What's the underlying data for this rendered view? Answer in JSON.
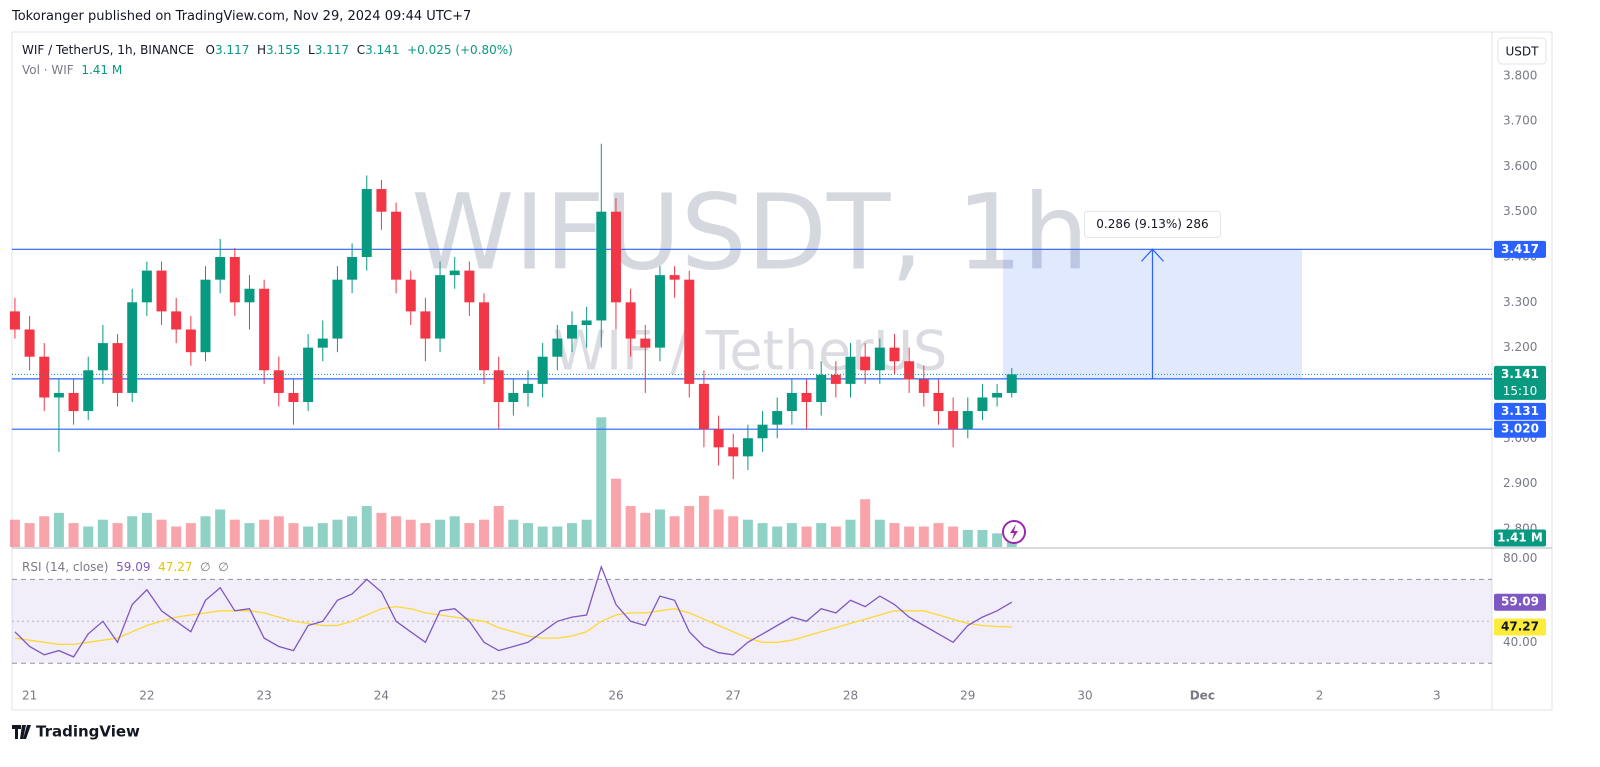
{
  "header": {
    "text": "Tokoranger published on TradingView.com, Nov 29, 2024 09:44 UTC+7"
  },
  "legend": {
    "symbol": "WIF / TetherUS, 1h, BINANCE",
    "o_label": "O",
    "open": 3.117,
    "h_label": "H",
    "high": 3.155,
    "l_label": "L",
    "low": 3.117,
    "c_label": "C",
    "close": 3.141,
    "change": "+0.025 (+0.80%)",
    "volume_label": "Vol · WIF",
    "volume_value": "1.41 M"
  },
  "watermark": {
    "symbol": "WIFUSDT, 1h",
    "name": "WIF / TetherUS"
  },
  "currency": "USDT",
  "footer": {
    "logo": "TradingView"
  },
  "chart_data": {
    "type": "candlestick",
    "x": [
      20.875,
      21,
      21.125,
      21.25,
      21.375,
      21.5,
      21.625,
      21.75,
      21.875,
      22,
      22.125,
      22.25,
      22.375,
      22.5,
      22.625,
      22.75,
      22.875,
      23,
      23.125,
      23.25,
      23.375,
      23.5,
      23.625,
      23.75,
      23.875,
      24,
      24.125,
      24.25,
      24.375,
      24.5,
      24.625,
      24.75,
      24.875,
      25,
      25.125,
      25.25,
      25.375,
      25.5,
      25.625,
      25.75,
      25.875,
      26,
      26.125,
      26.25,
      26.375,
      26.5,
      26.625,
      26.75,
      26.875,
      27,
      27.125,
      27.25,
      27.375,
      27.5,
      27.625,
      27.75,
      27.875,
      28,
      28.125,
      28.25,
      28.375,
      28.5,
      28.625,
      28.75,
      28.875,
      29,
      29.125,
      29.25,
      29.375
    ],
    "open": [
      3.28,
      3.24,
      3.18,
      3.09,
      3.1,
      3.06,
      3.15,
      3.21,
      3.1,
      3.3,
      3.37,
      3.28,
      3.24,
      3.19,
      3.35,
      3.4,
      3.3,
      3.33,
      3.15,
      3.1,
      3.08,
      3.2,
      3.22,
      3.35,
      3.4,
      3.55,
      3.5,
      3.35,
      3.28,
      3.22,
      3.36,
      3.37,
      3.3,
      3.15,
      3.08,
      3.1,
      3.12,
      3.18,
      3.22,
      3.25,
      3.26,
      3.5,
      3.3,
      3.22,
      3.2,
      3.36,
      3.35,
      3.12,
      3.02,
      2.98,
      2.96,
      3.0,
      3.03,
      3.06,
      3.1,
      3.08,
      3.14,
      3.12,
      3.18,
      3.15,
      3.2,
      3.17,
      3.13,
      3.1,
      3.06,
      3.02,
      3.06,
      3.09,
      3.1
    ],
    "high": [
      3.31,
      3.27,
      3.21,
      3.13,
      3.13,
      3.18,
      3.25,
      3.23,
      3.33,
      3.39,
      3.39,
      3.31,
      3.27,
      3.38,
      3.44,
      3.42,
      3.36,
      3.35,
      3.18,
      3.13,
      3.23,
      3.26,
      3.38,
      3.43,
      3.58,
      3.57,
      3.52,
      3.37,
      3.31,
      3.39,
      3.4,
      3.39,
      3.32,
      3.18,
      3.13,
      3.15,
      3.21,
      3.25,
      3.28,
      3.29,
      3.65,
      3.53,
      3.33,
      3.25,
      3.38,
      3.38,
      3.37,
      3.15,
      3.05,
      3.01,
      3.03,
      3.06,
      3.09,
      3.13,
      3.13,
      3.17,
      3.17,
      3.21,
      3.21,
      3.22,
      3.23,
      3.2,
      3.16,
      3.13,
      3.09,
      3.09,
      3.12,
      3.12,
      3.155
    ],
    "low": [
      3.22,
      3.15,
      3.06,
      2.97,
      3.03,
      3.04,
      3.12,
      3.07,
      3.08,
      3.27,
      3.25,
      3.21,
      3.16,
      3.17,
      3.32,
      3.27,
      3.24,
      3.12,
      3.07,
      3.03,
      3.06,
      3.17,
      3.19,
      3.32,
      3.37,
      3.46,
      3.32,
      3.25,
      3.17,
      3.19,
      3.33,
      3.27,
      3.12,
      3.02,
      3.05,
      3.07,
      3.09,
      3.15,
      3.19,
      3.2,
      3.2,
      3.24,
      3.18,
      3.1,
      3.17,
      3.31,
      3.09,
      2.98,
      2.94,
      2.91,
      2.93,
      2.97,
      3.0,
      3.03,
      3.02,
      3.05,
      3.09,
      3.09,
      3.12,
      3.12,
      3.14,
      3.1,
      3.07,
      3.03,
      2.98,
      3.0,
      3.04,
      3.07,
      3.09
    ],
    "close": [
      3.24,
      3.18,
      3.09,
      3.1,
      3.06,
      3.15,
      3.21,
      3.1,
      3.3,
      3.37,
      3.28,
      3.24,
      3.19,
      3.35,
      3.4,
      3.3,
      3.33,
      3.15,
      3.1,
      3.08,
      3.2,
      3.22,
      3.35,
      3.4,
      3.55,
      3.5,
      3.35,
      3.28,
      3.22,
      3.36,
      3.37,
      3.3,
      3.15,
      3.08,
      3.1,
      3.12,
      3.18,
      3.22,
      3.25,
      3.26,
      3.5,
      3.3,
      3.22,
      3.2,
      3.36,
      3.35,
      3.12,
      3.02,
      2.98,
      2.96,
      3.0,
      3.03,
      3.06,
      3.1,
      3.08,
      3.14,
      3.12,
      3.18,
      3.15,
      3.2,
      3.17,
      3.13,
      3.1,
      3.06,
      3.02,
      3.06,
      3.09,
      3.1,
      3.141
    ],
    "volume": [
      8,
      7,
      9,
      10,
      7,
      6,
      8,
      7,
      9,
      10,
      8,
      6,
      7,
      9,
      11,
      8,
      7,
      8,
      9,
      7,
      6,
      7,
      8,
      9,
      12,
      10,
      9,
      8,
      7,
      8,
      9,
      7,
      8,
      12,
      8,
      7,
      6,
      6,
      7,
      8,
      38,
      20,
      12,
      10,
      11,
      9,
      12,
      15,
      11,
      9,
      8,
      7,
      6,
      7,
      6,
      7,
      6,
      8,
      14,
      8,
      7,
      6,
      6,
      7,
      6,
      5,
      5,
      4,
      1.41
    ],
    "volume_lim": [
      0,
      150
    ],
    "volume_badge": {
      "value": 1.41,
      "label": "1.41 M"
    },
    "up_color": "#089981",
    "down_color": "#f23645",
    "xlim": [
      20.85,
      33.47
    ],
    "xticks": [
      21,
      22,
      23,
      24,
      25,
      26,
      27,
      28,
      29,
      30,
      {
        "value": 31,
        "label": "Dec"
      },
      {
        "value": 32,
        "label": "2"
      },
      {
        "value": 33,
        "label": "3"
      }
    ],
    "ylim": [
      2.76,
      3.89
    ],
    "yticks": [
      {
        "value": 2.8,
        "label": "2.800"
      },
      {
        "value": 2.9,
        "label": "2.900"
      },
      {
        "value": 3.0,
        "label": "3.000"
      },
      {
        "value": 3.1,
        "label": "3.100"
      },
      {
        "value": 3.2,
        "label": "3.200"
      },
      {
        "value": 3.3,
        "label": "3.300"
      },
      {
        "value": 3.4,
        "label": "3.400"
      },
      {
        "value": 3.5,
        "label": "3.500"
      },
      {
        "value": 3.6,
        "label": "3.600"
      },
      {
        "value": 3.7,
        "label": "3.700"
      },
      {
        "value": 3.8,
        "label": "3.800"
      }
    ],
    "levels": [
      {
        "value": 3.417,
        "label": "3.417"
      },
      {
        "value": 3.131,
        "label": "3.131"
      },
      {
        "value": 3.02,
        "label": "3.020"
      }
    ],
    "level_color": "#2962ff",
    "countdown": "15:10",
    "measure": {
      "x0": 29.3,
      "x1": 31.85,
      "y0": 3.131,
      "y1": 3.417,
      "label": "0.286 (9.13%) 286"
    },
    "rsi": {
      "title": "RSI (14, close)",
      "color": "#7e57c2",
      "ma_color": "#fdd835",
      "values": [
        45,
        38,
        34,
        36,
        33,
        44,
        50,
        40,
        58,
        65,
        55,
        50,
        45,
        60,
        66,
        55,
        56,
        42,
        38,
        36,
        48,
        50,
        60,
        63,
        70,
        64,
        50,
        45,
        40,
        55,
        56,
        50,
        40,
        36,
        38,
        40,
        45,
        50,
        52,
        53,
        76,
        58,
        50,
        48,
        62,
        60,
        45,
        38,
        35,
        34,
        40,
        44,
        48,
        52,
        50,
        56,
        54,
        60,
        57,
        62,
        58,
        52,
        48,
        44,
        40,
        48,
        52,
        55,
        59.09
      ],
      "ma": [
        42,
        41,
        40,
        39,
        39,
        40,
        41,
        42,
        45,
        48,
        50,
        52,
        53,
        54,
        55,
        55,
        55,
        54,
        52,
        50,
        49,
        48,
        48,
        50,
        53,
        56,
        57,
        56,
        54,
        53,
        52,
        51,
        50,
        47,
        45,
        43,
        42,
        42,
        43,
        45,
        50,
        53,
        54,
        54,
        55,
        56,
        54,
        51,
        48,
        45,
        42,
        40,
        40,
        41,
        43,
        45,
        47,
        49,
        51,
        53,
        55,
        55,
        55,
        53,
        51,
        49,
        48,
        47.5,
        47.27
      ],
      "na_labels": [
        "∅",
        "∅"
      ],
      "ylim": [
        22,
        84
      ],
      "yticks": [
        {
          "value": 80,
          "label": "80.00"
        },
        {
          "value": 40,
          "label": "40.00"
        }
      ],
      "bands": [
        30,
        50,
        70
      ]
    }
  }
}
